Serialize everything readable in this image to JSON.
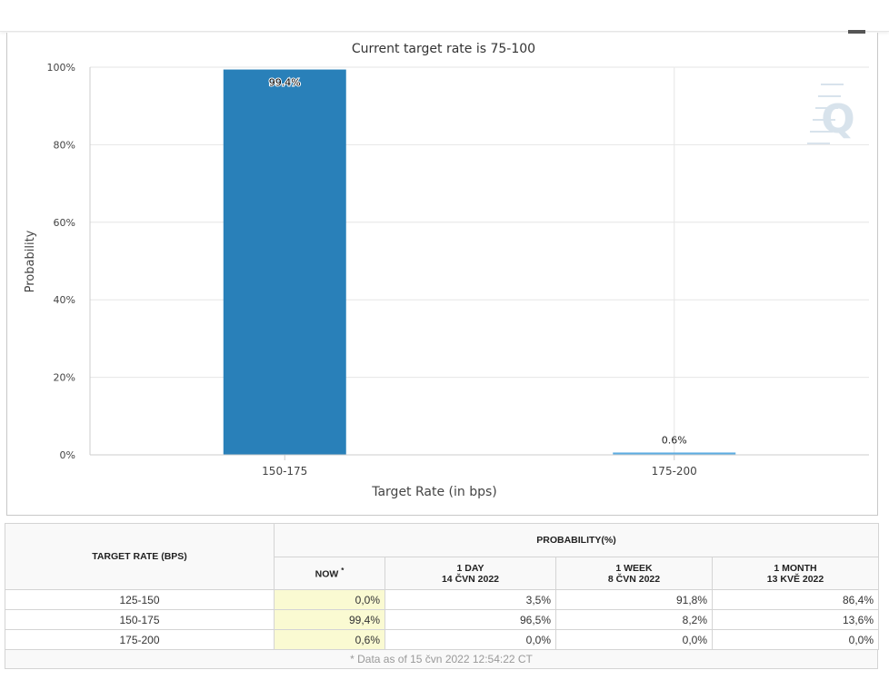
{
  "chart_data": {
    "type": "bar",
    "title": "Current target rate is 75-100",
    "xlabel": "Target Rate (in bps)",
    "ylabel": "Probability",
    "categories": [
      "150-175",
      "175-200"
    ],
    "values": [
      99.4,
      0.6
    ],
    "data_labels": [
      "99.4%",
      "0.6%"
    ],
    "yticks": [
      "0%",
      "20%",
      "40%",
      "60%",
      "80%",
      "100%"
    ],
    "ylim": [
      0,
      100
    ],
    "grid": true,
    "colors": [
      "#2980b9",
      "#5dade2"
    ],
    "watermark": "Q"
  },
  "table": {
    "header_target": "TARGET RATE (BPS)",
    "header_probability": "PROBABILITY(%)",
    "col_now": "NOW",
    "col_now_mark": "*",
    "col_1day": "1 DAY",
    "col_1day_date": "14 ČVN 2022",
    "col_1week": "1 WEEK",
    "col_1week_date": "8 ČVN 2022",
    "col_1month": "1 MONTH",
    "col_1month_date": "13 KVĚ 2022",
    "rows": [
      {
        "target": "125-150",
        "now": "0,0%",
        "day": "3,5%",
        "week": "91,8%",
        "month": "86,4%"
      },
      {
        "target": "150-175",
        "now": "99,4%",
        "day": "96,5%",
        "week": "8,2%",
        "month": "13,6%"
      },
      {
        "target": "175-200",
        "now": "0,6%",
        "day": "0,0%",
        "week": "0,0%",
        "month": "0,0%"
      }
    ],
    "footnote": "* Data as of 15 čvn 2022 12:54:22 CT"
  }
}
